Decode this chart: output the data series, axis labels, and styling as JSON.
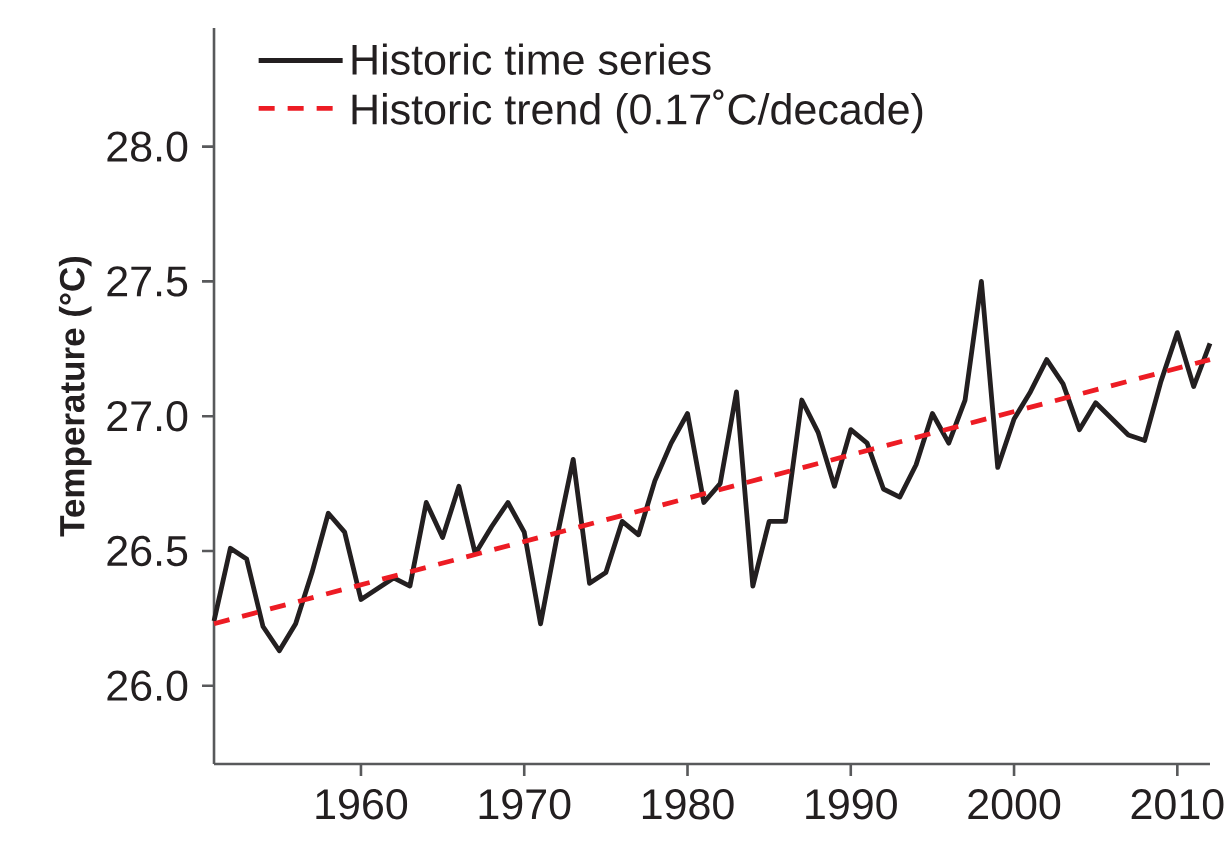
{
  "chart_data": {
    "type": "line",
    "ylabel": "Temperature (°C)",
    "x": [
      1951,
      1952,
      1953,
      1954,
      1955,
      1956,
      1957,
      1958,
      1959,
      1960,
      1961,
      1962,
      1963,
      1964,
      1965,
      1966,
      1967,
      1968,
      1969,
      1970,
      1971,
      1972,
      1973,
      1974,
      1975,
      1976,
      1977,
      1978,
      1979,
      1980,
      1981,
      1982,
      1983,
      1984,
      1985,
      1986,
      1987,
      1988,
      1989,
      1990,
      1991,
      1992,
      1993,
      1994,
      1995,
      1996,
      1997,
      1998,
      1999,
      2000,
      2001,
      2002,
      2003,
      2004,
      2005,
      2006,
      2007,
      2008,
      2009,
      2010,
      2011,
      2012
    ],
    "series": [
      {
        "name": "Historic time series",
        "color": "#231f20",
        "values": [
          26.24,
          26.51,
          26.47,
          26.22,
          26.13,
          26.23,
          26.42,
          26.64,
          26.57,
          26.32,
          26.36,
          26.4,
          26.37,
          26.68,
          26.55,
          26.74,
          26.49,
          26.59,
          26.68,
          26.57,
          26.23,
          26.55,
          26.84,
          26.38,
          26.42,
          26.61,
          26.56,
          26.76,
          26.9,
          27.01,
          26.68,
          26.75,
          27.09,
          26.37,
          26.61,
          26.61,
          27.06,
          26.94,
          26.74,
          26.95,
          26.9,
          26.73,
          26.7,
          26.82,
          27.01,
          26.9,
          27.06,
          27.5,
          26.81,
          26.99,
          27.09,
          27.21,
          27.12,
          26.95,
          27.05,
          26.99,
          26.93,
          26.91,
          27.13,
          27.31,
          27.11,
          27.27
        ]
      },
      {
        "name": "Historic trend (0.17˚C/decade)",
        "color": "#ed1c24",
        "x": [
          1951,
          2012
        ],
        "values": [
          26.23,
          27.21
        ],
        "line_style": "dashed"
      }
    ],
    "xlim": [
      1951,
      2012
    ],
    "ylim": [
      25.71,
      28.44
    ],
    "xticks": [
      1960,
      1970,
      1980,
      1990,
      2000,
      2010
    ],
    "yticks": [
      {
        "value": 26,
        "label": "26.0"
      },
      {
        "value": 26.5,
        "label": "26.5"
      },
      {
        "value": 27,
        "label": "27.0"
      },
      {
        "value": 27.5,
        "label": "27.5"
      },
      {
        "value": 28,
        "label": "28.0"
      }
    ],
    "legend": "top left"
  }
}
